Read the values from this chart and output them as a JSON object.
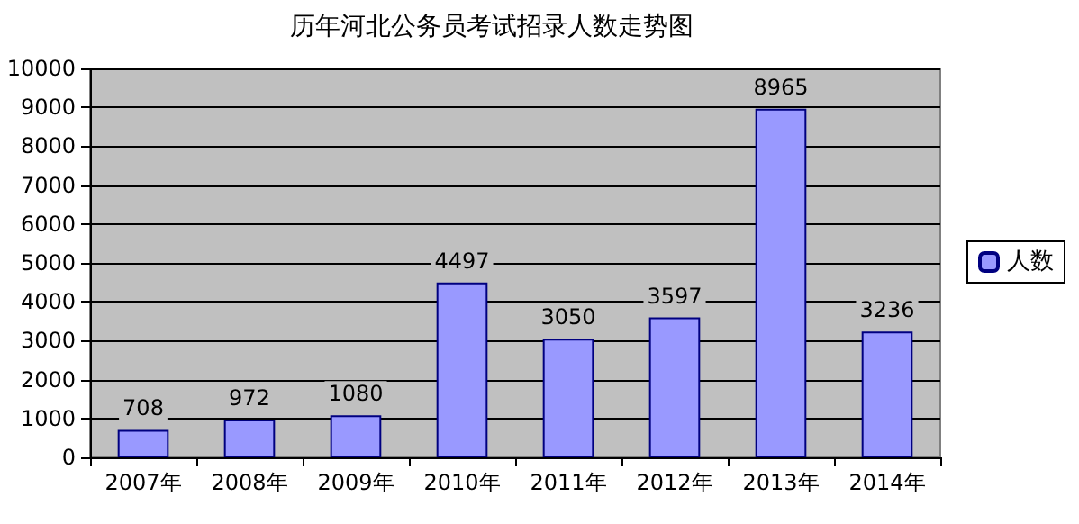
{
  "chart_data": {
    "type": "bar",
    "title": "历年河北公务员考试招录人数走势图",
    "categories": [
      "2007年",
      "2008年",
      "2009年",
      "2010年",
      "2011年",
      "2012年",
      "2013年",
      "2014年"
    ],
    "series": [
      {
        "name": "人数",
        "color": "#9999ff",
        "values": [
          708,
          972,
          1080,
          4497,
          3050,
          3597,
          8965,
          3236
        ]
      }
    ],
    "ylim": [
      0,
      10000
    ],
    "yticks": [
      0,
      1000,
      2000,
      3000,
      4000,
      5000,
      6000,
      7000,
      8000,
      9000,
      10000
    ],
    "grid": "y",
    "legend": "right",
    "data_labels": true
  }
}
